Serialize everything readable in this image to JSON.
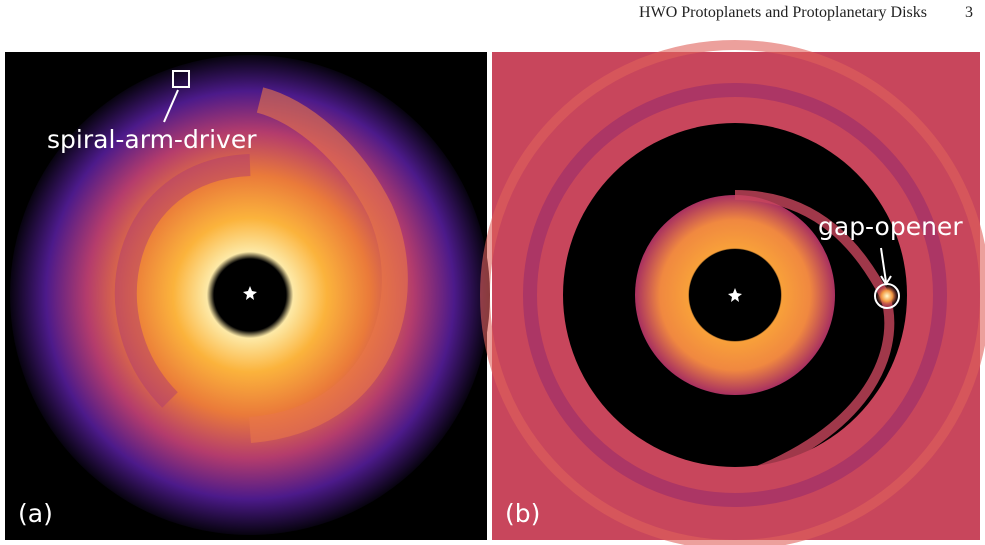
{
  "header": {
    "title": "HWO Protoplanets and Protoplanetary Disks",
    "page_number": "3"
  },
  "figures": [
    {
      "label": "(a)",
      "annotation": "spiral-arm-driver"
    },
    {
      "label": "(b)",
      "annotation": "gap-opener"
    }
  ]
}
